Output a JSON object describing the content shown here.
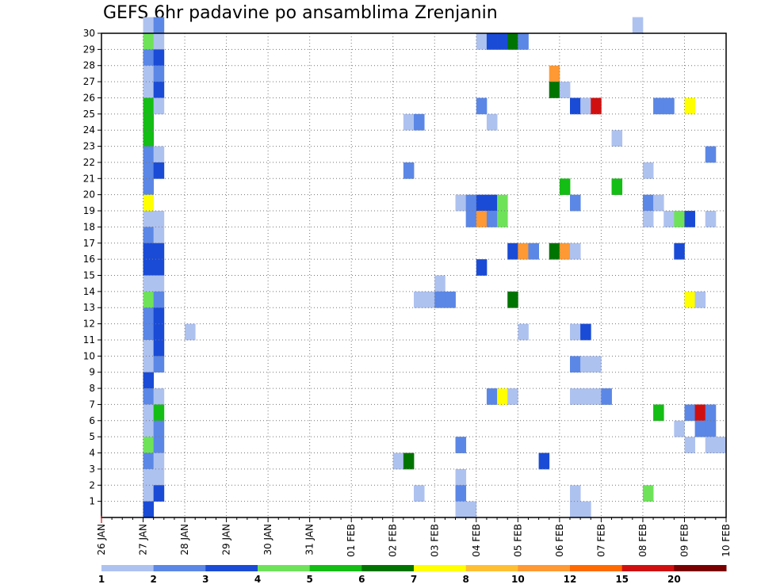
{
  "chart_data": {
    "type": "heatmap",
    "title": "GEFS 6hr padavine po ansamblima Zrenjanin",
    "xlabel": "",
    "ylabel": "",
    "x_tick_labels": [
      "26 JAN",
      "27 JAN",
      "28 JAN",
      "29 JAN",
      "30 JAN",
      "31 JAN",
      "01 FEB",
      "02 FEB",
      "03 FEB",
      "04 FEB",
      "05 FEB",
      "06 FEB",
      "07 FEB",
      "08 FEB",
      "09 FEB",
      "10 FEB"
    ],
    "x_range_days": [
      0,
      15
    ],
    "step_per_day": 4,
    "y_tick_labels": [
      "1",
      "2",
      "3",
      "4",
      "5",
      "6",
      "7",
      "8",
      "9",
      "10",
      "11",
      "12",
      "13",
      "14",
      "15",
      "16",
      "17",
      "18",
      "19",
      "20",
      "21",
      "22",
      "23",
      "24",
      "25",
      "26",
      "27",
      "28",
      "29",
      "30"
    ],
    "y_range": [
      0,
      30
    ],
    "grid": true,
    "colorbar": {
      "labels": [
        "1",
        "2",
        "3",
        "4",
        "5",
        "6",
        "7",
        "8",
        "10",
        "12",
        "15",
        "20"
      ],
      "colors": [
        "#aec2f0",
        "#5b87e6",
        "#1a4bd6",
        "#6ee35a",
        "#14be14",
        "#007400",
        "#ffff00",
        "#ffbf33",
        "#ff9933",
        "#ff6a00",
        "#d01010",
        "#7a0000"
      ]
    },
    "cells_note": "each cell: [member, step, color class 0-11]; step = 6h interval index from 26 JAN 00z",
    "cells": [
      [
        30,
        4,
        0
      ],
      [
        30,
        5,
        1
      ],
      [
        30,
        51,
        0
      ],
      [
        29,
        4,
        3
      ],
      [
        29,
        5,
        0
      ],
      [
        29,
        36,
        0
      ],
      [
        29,
        37,
        2
      ],
      [
        29,
        38,
        2
      ],
      [
        29,
        39,
        5
      ],
      [
        29,
        40,
        1
      ],
      [
        28,
        4,
        1
      ],
      [
        28,
        5,
        2
      ],
      [
        27,
        4,
        0
      ],
      [
        27,
        5,
        1
      ],
      [
        27,
        43,
        8
      ],
      [
        26,
        4,
        0
      ],
      [
        26,
        5,
        2
      ],
      [
        26,
        43,
        5
      ],
      [
        26,
        44,
        0
      ],
      [
        25,
        4,
        4
      ],
      [
        25,
        5,
        0
      ],
      [
        25,
        36,
        1
      ],
      [
        25,
        45,
        2
      ],
      [
        25,
        46,
        0
      ],
      [
        25,
        47,
        10
      ],
      [
        25,
        53,
        1
      ],
      [
        25,
        54,
        1
      ],
      [
        25,
        56,
        6
      ],
      [
        24,
        4,
        4
      ],
      [
        24,
        29,
        0
      ],
      [
        24,
        30,
        1
      ],
      [
        24,
        37,
        0
      ],
      [
        23,
        4,
        4
      ],
      [
        23,
        49,
        0
      ],
      [
        22,
        4,
        1
      ],
      [
        22,
        5,
        0
      ],
      [
        22,
        58,
        1
      ],
      [
        21,
        4,
        1
      ],
      [
        21,
        5,
        2
      ],
      [
        21,
        29,
        1
      ],
      [
        21,
        52,
        0
      ],
      [
        20,
        4,
        1
      ],
      [
        20,
        44,
        4
      ],
      [
        20,
        49,
        4
      ],
      [
        19,
        4,
        6
      ],
      [
        19,
        34,
        0
      ],
      [
        19,
        35,
        1
      ],
      [
        19,
        36,
        2
      ],
      [
        19,
        37,
        2
      ],
      [
        19,
        38,
        3
      ],
      [
        19,
        45,
        1
      ],
      [
        19,
        52,
        1
      ],
      [
        19,
        53,
        0
      ],
      [
        18,
        4,
        0
      ],
      [
        18,
        5,
        0
      ],
      [
        18,
        35,
        1
      ],
      [
        18,
        36,
        8
      ],
      [
        18,
        37,
        1
      ],
      [
        18,
        38,
        3
      ],
      [
        18,
        52,
        0
      ],
      [
        18,
        54,
        0
      ],
      [
        18,
        55,
        3
      ],
      [
        18,
        56,
        2
      ],
      [
        18,
        58,
        0
      ],
      [
        17,
        4,
        1
      ],
      [
        17,
        5,
        0
      ],
      [
        16,
        4,
        2
      ],
      [
        16,
        5,
        2
      ],
      [
        16,
        39,
        2
      ],
      [
        16,
        40,
        8
      ],
      [
        16,
        41,
        1
      ],
      [
        16,
        43,
        5
      ],
      [
        16,
        44,
        8
      ],
      [
        16,
        45,
        0
      ],
      [
        16,
        55,
        2
      ],
      [
        15,
        4,
        2
      ],
      [
        15,
        5,
        2
      ],
      [
        15,
        36,
        2
      ],
      [
        14,
        4,
        0
      ],
      [
        14,
        5,
        0
      ],
      [
        14,
        32,
        0
      ],
      [
        13,
        4,
        3
      ],
      [
        13,
        5,
        1
      ],
      [
        13,
        30,
        0
      ],
      [
        13,
        31,
        0
      ],
      [
        13,
        32,
        1
      ],
      [
        13,
        33,
        1
      ],
      [
        13,
        39,
        5
      ],
      [
        13,
        56,
        6
      ],
      [
        13,
        57,
        0
      ],
      [
        12,
        4,
        1
      ],
      [
        12,
        5,
        2
      ],
      [
        11,
        4,
        1
      ],
      [
        11,
        5,
        2
      ],
      [
        11,
        8,
        0
      ],
      [
        11,
        40,
        0
      ],
      [
        11,
        45,
        0
      ],
      [
        11,
        46,
        2
      ],
      [
        10,
        4,
        0
      ],
      [
        10,
        5,
        2
      ],
      [
        9,
        4,
        0
      ],
      [
        9,
        5,
        1
      ],
      [
        9,
        45,
        1
      ],
      [
        9,
        46,
        0
      ],
      [
        9,
        47,
        0
      ],
      [
        8,
        4,
        2
      ],
      [
        7,
        4,
        1
      ],
      [
        7,
        5,
        0
      ],
      [
        7,
        37,
        1
      ],
      [
        7,
        38,
        6
      ],
      [
        7,
        39,
        0
      ],
      [
        7,
        45,
        0
      ],
      [
        7,
        46,
        0
      ],
      [
        7,
        47,
        0
      ],
      [
        7,
        48,
        1
      ],
      [
        6,
        4,
        0
      ],
      [
        6,
        5,
        4
      ],
      [
        6,
        53,
        4
      ],
      [
        6,
        56,
        1
      ],
      [
        6,
        57,
        10
      ],
      [
        6,
        58,
        1
      ],
      [
        5,
        4,
        0
      ],
      [
        5,
        5,
        1
      ],
      [
        5,
        55,
        0
      ],
      [
        5,
        57,
        1
      ],
      [
        5,
        58,
        1
      ],
      [
        4,
        4,
        3
      ],
      [
        4,
        5,
        1
      ],
      [
        4,
        34,
        1
      ],
      [
        4,
        56,
        0
      ],
      [
        4,
        58,
        0
      ],
      [
        4,
        59,
        0
      ],
      [
        3,
        4,
        1
      ],
      [
        3,
        5,
        0
      ],
      [
        3,
        28,
        0
      ],
      [
        3,
        29,
        5
      ],
      [
        3,
        42,
        2
      ],
      [
        2,
        4,
        0
      ],
      [
        2,
        5,
        0
      ],
      [
        2,
        34,
        0
      ],
      [
        1,
        4,
        0
      ],
      [
        1,
        5,
        2
      ],
      [
        1,
        30,
        0
      ],
      [
        1,
        34,
        1
      ],
      [
        1,
        45,
        0
      ],
      [
        1,
        52,
        3
      ],
      [
        0,
        4,
        2
      ],
      [
        0,
        34,
        0
      ],
      [
        0,
        35,
        0
      ],
      [
        0,
        45,
        0
      ],
      [
        0,
        46,
        0
      ]
    ]
  }
}
